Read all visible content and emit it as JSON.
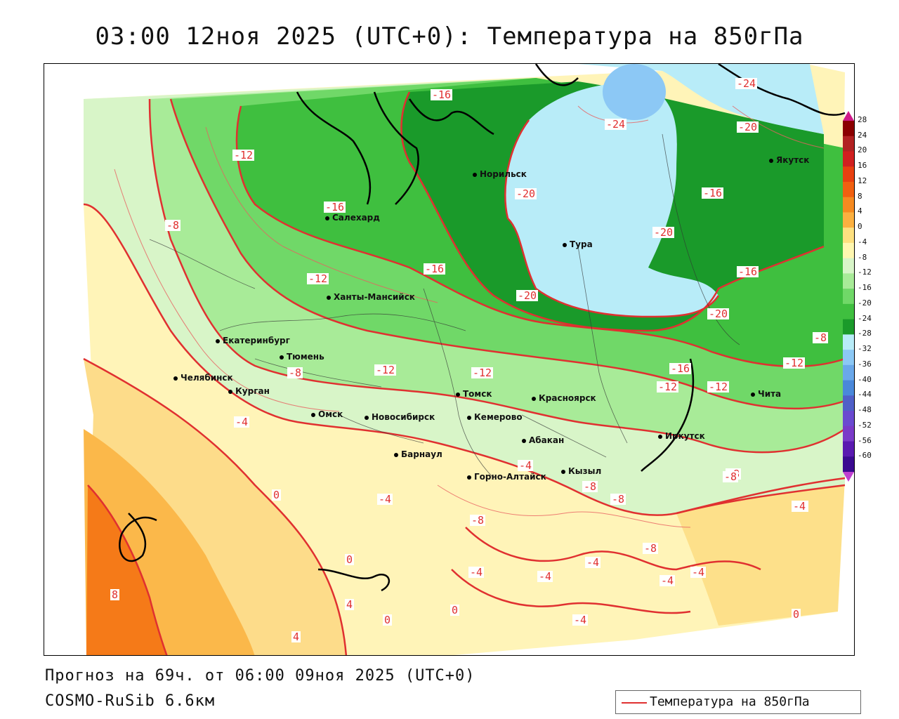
{
  "title": "03:00 12ноя 2025 (UTC+0): Температура на 850гПа",
  "footer": {
    "forecast": "Прогноз на 69ч. от 06:00 09ноя 2025 (UTC+0)",
    "model": "COSMO-RuSib 6.6км"
  },
  "legend": {
    "label": "Температура на 850гПа",
    "line_color": "#e03030"
  },
  "colorbar": {
    "labels": [
      "28",
      "24",
      "20",
      "16",
      "12",
      "8",
      "4",
      "0",
      "-4",
      "-8",
      "-12",
      "-16",
      "-20",
      "-24",
      "-28",
      "-32",
      "-36",
      "-40",
      "-44",
      "-48",
      "-52",
      "-56",
      "-60"
    ],
    "colors": [
      "#8b0000",
      "#b22222",
      "#d02020",
      "#e84010",
      "#f06010",
      "#f58a20",
      "#fbb040",
      "#fde080",
      "#fff7b0",
      "#d8f5c8",
      "#a8eb98",
      "#70d868",
      "#3fbf3f",
      "#1a9a2a",
      "#b8ecf8",
      "#8cc8f5",
      "#6aa8ea",
      "#4a88da",
      "#5060c8",
      "#6a4ad0",
      "#7a3ac8",
      "#5a1ab0",
      "#3a0a90"
    ]
  },
  "cities": [
    {
      "name": "Норильск"
    },
    {
      "name": "Салехард"
    },
    {
      "name": "Тура"
    },
    {
      "name": "Якутск"
    },
    {
      "name": "Ханты-Мансийск"
    },
    {
      "name": "Екатеринбург"
    },
    {
      "name": "Тюмень"
    },
    {
      "name": "Челябинск"
    },
    {
      "name": "Курган"
    },
    {
      "name": "Омск"
    },
    {
      "name": "Новосибирск"
    },
    {
      "name": "Томск"
    },
    {
      "name": "Кемерово"
    },
    {
      "name": "Красноярск"
    },
    {
      "name": "Барнаул"
    },
    {
      "name": "Абакан"
    },
    {
      "name": "Иркутск"
    },
    {
      "name": "Чита"
    },
    {
      "name": "Кызыл"
    },
    {
      "name": "Горно-Алтайск"
    }
  ],
  "isotherm_labels": [
    "-16",
    "-12",
    "-24",
    "-20",
    "-16",
    "-20",
    "-16",
    "-20",
    "-16",
    "-12",
    "-20",
    "-16",
    "-20",
    "-24",
    "-12",
    "-8",
    "-8",
    "-12",
    "-12",
    "-16",
    "-12",
    "-8",
    "-4",
    "-8",
    "-4",
    "-4",
    "-4",
    "0",
    "0",
    "4",
    "4",
    "0",
    "8",
    "0",
    "-4",
    "-4",
    "-4",
    "-4",
    "-4",
    "-8",
    "-8",
    "-8",
    "-8",
    "-8",
    "-12",
    "-4",
    "0",
    "-4"
  ]
}
